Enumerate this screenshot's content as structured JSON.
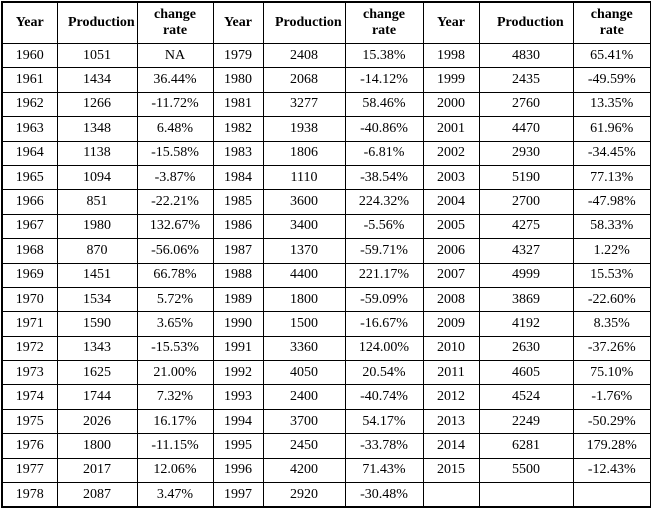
{
  "colors": {
    "border": "#000000",
    "text": "#000000",
    "background": "#ffffff"
  },
  "table": {
    "column_headers": [
      "Year",
      "Production",
      "change rate"
    ],
    "header_group_count": 3,
    "rows": [
      [
        "1960",
        "1051",
        "NA",
        "1979",
        "2408",
        "15.38%",
        "1998",
        "4830",
        "65.41%"
      ],
      [
        "1961",
        "1434",
        "36.44%",
        "1980",
        "2068",
        "-14.12%",
        "1999",
        "2435",
        "-49.59%"
      ],
      [
        "1962",
        "1266",
        "-11.72%",
        "1981",
        "3277",
        "58.46%",
        "2000",
        "2760",
        "13.35%"
      ],
      [
        "1963",
        "1348",
        "6.48%",
        "1982",
        "1938",
        "-40.86%",
        "2001",
        "4470",
        "61.96%"
      ],
      [
        "1964",
        "1138",
        "-15.58%",
        "1983",
        "1806",
        "-6.81%",
        "2002",
        "2930",
        "-34.45%"
      ],
      [
        "1965",
        "1094",
        "-3.87%",
        "1984",
        "1110",
        "-38.54%",
        "2003",
        "5190",
        "77.13%"
      ],
      [
        "1966",
        "851",
        "-22.21%",
        "1985",
        "3600",
        "224.32%",
        "2004",
        "2700",
        "-47.98%"
      ],
      [
        "1967",
        "1980",
        "132.67%",
        "1986",
        "3400",
        "-5.56%",
        "2005",
        "4275",
        "58.33%"
      ],
      [
        "1968",
        "870",
        "-56.06%",
        "1987",
        "1370",
        "-59.71%",
        "2006",
        "4327",
        "1.22%"
      ],
      [
        "1969",
        "1451",
        "66.78%",
        "1988",
        "4400",
        "221.17%",
        "2007",
        "4999",
        "15.53%"
      ],
      [
        "1970",
        "1534",
        "5.72%",
        "1989",
        "1800",
        "-59.09%",
        "2008",
        "3869",
        "-22.60%"
      ],
      [
        "1971",
        "1590",
        "3.65%",
        "1990",
        "1500",
        "-16.67%",
        "2009",
        "4192",
        "8.35%"
      ],
      [
        "1972",
        "1343",
        "-15.53%",
        "1991",
        "3360",
        "124.00%",
        "2010",
        "2630",
        "-37.26%"
      ],
      [
        "1973",
        "1625",
        "21.00%",
        "1992",
        "4050",
        "20.54%",
        "2011",
        "4605",
        "75.10%"
      ],
      [
        "1974",
        "1744",
        "7.32%",
        "1993",
        "2400",
        "-40.74%",
        "2012",
        "4524",
        "-1.76%"
      ],
      [
        "1975",
        "2026",
        "16.17%",
        "1994",
        "3700",
        "54.17%",
        "2013",
        "2249",
        "-50.29%"
      ],
      [
        "1976",
        "1800",
        "-11.15%",
        "1995",
        "2450",
        "-33.78%",
        "2014",
        "6281",
        "179.28%"
      ],
      [
        "1977",
        "2017",
        "12.06%",
        "1996",
        "4200",
        "71.43%",
        "2015",
        "5500",
        "-12.43%"
      ],
      [
        "1978",
        "2087",
        "3.47%",
        "1997",
        "2920",
        "-30.48%",
        "",
        "",
        ""
      ]
    ]
  }
}
